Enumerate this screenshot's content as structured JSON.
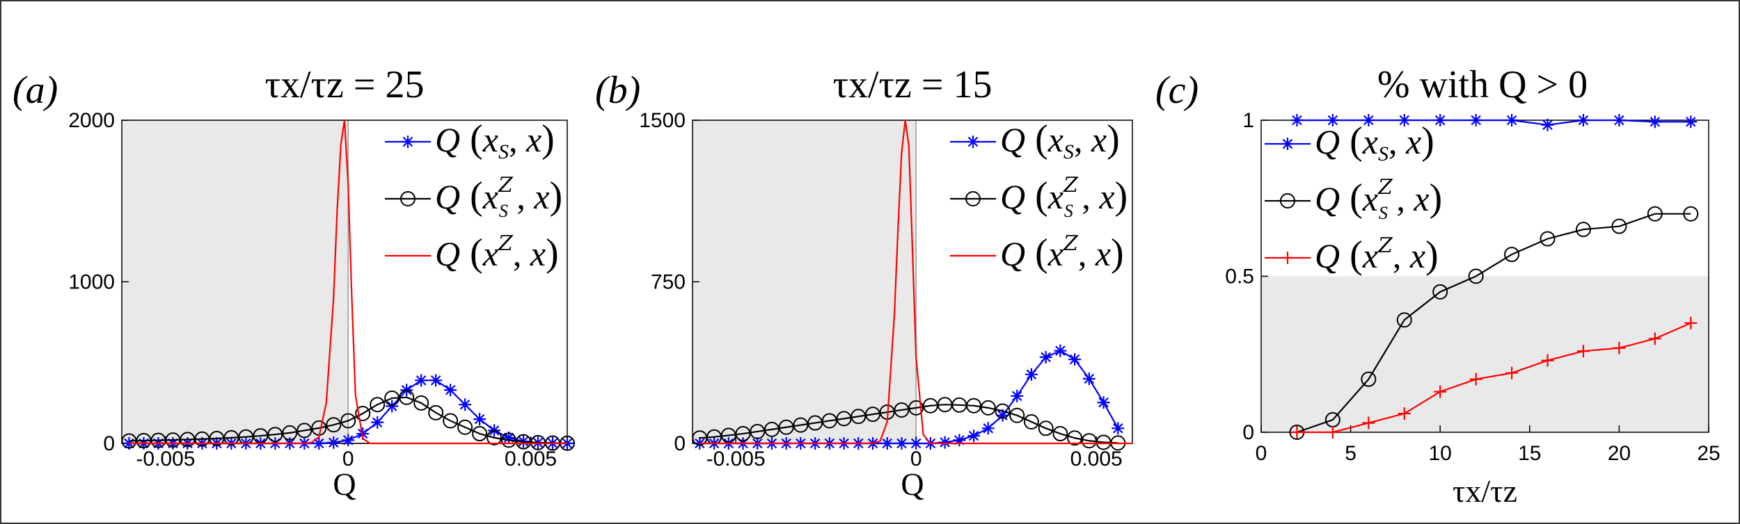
{
  "chart_data": [
    {
      "panel_label": "(a)",
      "type": "line",
      "title": "τx/τz = 25",
      "xlabel": "Q",
      "xlim": [
        -0.0062,
        0.006
      ],
      "ylim": [
        0,
        2000
      ],
      "yticks": [
        "0",
        "1000",
        "2000"
      ],
      "xticks": [
        "-0.005",
        "0",
        "0.005"
      ],
      "shaded_x": [
        -0.0062,
        0
      ],
      "legend_position": "top-right",
      "series": [
        {
          "name": "Q(xS, x)",
          "color": "#0000ff",
          "marker": "star",
          "x": [
            -0.006,
            -0.0056,
            -0.0052,
            -0.0048,
            -0.0044,
            -0.004,
            -0.0036,
            -0.0032,
            -0.0028,
            -0.0024,
            -0.002,
            -0.0016,
            -0.0012,
            -0.0008,
            -0.0004,
            0,
            0.0004,
            0.0008,
            0.0012,
            0.0016,
            0.002,
            0.0024,
            0.0028,
            0.0032,
            0.0036,
            0.004,
            0.0044,
            0.0048,
            0.0052,
            0.0056,
            0.006
          ],
          "y": [
            0,
            0,
            0,
            0,
            0,
            0,
            0,
            0,
            0,
            0,
            0,
            0,
            0,
            0,
            5,
            20,
            60,
            130,
            230,
            330,
            390,
            390,
            330,
            240,
            150,
            80,
            35,
            12,
            4,
            1,
            0
          ]
        },
        {
          "name": "Q(xS^Z, x)",
          "color": "#000000",
          "marker": "circle",
          "x": [
            -0.006,
            -0.0056,
            -0.0052,
            -0.0048,
            -0.0044,
            -0.004,
            -0.0036,
            -0.0032,
            -0.0028,
            -0.0024,
            -0.002,
            -0.0016,
            -0.0012,
            -0.0008,
            -0.0004,
            0,
            0.0004,
            0.0008,
            0.0012,
            0.0016,
            0.002,
            0.0024,
            0.0028,
            0.0032,
            0.0036,
            0.004,
            0.0044,
            0.0048,
            0.0052,
            0.0056,
            0.006
          ],
          "y": [
            15,
            17,
            19,
            21,
            24,
            27,
            30,
            35,
            40,
            47,
            55,
            65,
            80,
            95,
            115,
            140,
            185,
            240,
            280,
            285,
            250,
            190,
            140,
            100,
            60,
            35,
            20,
            10,
            5,
            2,
            1
          ]
        },
        {
          "name": "Q(x^Z, x)",
          "color": "#ff0000",
          "marker": "none",
          "x": [
            -0.006,
            -0.0012,
            -0.001,
            -0.0008,
            -0.0006,
            -0.0004,
            -0.0003,
            -0.0002,
            -0.0001,
            0,
            0.0001,
            0.0002,
            0.0004,
            0.0006,
            0.006
          ],
          "y": [
            0,
            0,
            5,
            40,
            250,
            900,
            1450,
            1850,
            2000,
            1600,
            900,
            300,
            30,
            0,
            0
          ]
        }
      ]
    },
    {
      "panel_label": "(b)",
      "type": "line",
      "title": "τx/τz = 15",
      "xlabel": "Q",
      "xlim": [
        -0.0062,
        0.006
      ],
      "ylim": [
        0,
        1500
      ],
      "yticks": [
        "0",
        "750",
        "1500"
      ],
      "xticks": [
        "-0.005",
        "0",
        "0.005"
      ],
      "shaded_x": [
        -0.0062,
        0
      ],
      "legend_position": "top-right",
      "series": [
        {
          "name": "Q(xS, x)",
          "color": "#0000ff",
          "marker": "star",
          "x": [
            -0.006,
            -0.0056,
            -0.0052,
            -0.0048,
            -0.0044,
            -0.004,
            -0.0036,
            -0.0032,
            -0.0028,
            -0.0024,
            -0.002,
            -0.0016,
            -0.0012,
            -0.0008,
            -0.0004,
            0,
            0.0004,
            0.0008,
            0.0012,
            0.0016,
            0.002,
            0.0024,
            0.0028,
            0.0032,
            0.0036,
            0.004,
            0.0044,
            0.0048,
            0.0052,
            0.0056
          ],
          "y": [
            0,
            0,
            0,
            0,
            0,
            0,
            0,
            0,
            0,
            0,
            0,
            0,
            0,
            0,
            0,
            0,
            0,
            5,
            15,
            35,
            70,
            130,
            220,
            320,
            400,
            430,
            390,
            300,
            190,
            70
          ]
        },
        {
          "name": "Q(xS^Z, x)",
          "color": "#000000",
          "marker": "circle",
          "x": [
            -0.006,
            -0.0056,
            -0.0052,
            -0.0048,
            -0.0044,
            -0.004,
            -0.0036,
            -0.0032,
            -0.0028,
            -0.0024,
            -0.002,
            -0.0016,
            -0.0012,
            -0.0008,
            -0.0004,
            0,
            0.0004,
            0.0008,
            0.0012,
            0.0016,
            0.002,
            0.0024,
            0.0028,
            0.0032,
            0.0036,
            0.004,
            0.0044,
            0.0048,
            0.0052,
            0.0056
          ],
          "y": [
            25,
            30,
            37,
            45,
            55,
            65,
            75,
            85,
            95,
            105,
            115,
            125,
            135,
            145,
            155,
            165,
            175,
            180,
            178,
            175,
            165,
            150,
            130,
            100,
            70,
            45,
            25,
            12,
            5,
            2
          ]
        },
        {
          "name": "Q(x^Z, x)",
          "color": "#ff0000",
          "marker": "none",
          "x": [
            -0.006,
            -0.0012,
            -0.001,
            -0.0008,
            -0.0006,
            -0.0005,
            -0.0004,
            -0.0003,
            -0.0002,
            -0.0001,
            0,
            0.0002,
            0.0004,
            0.006
          ],
          "y": [
            0,
            0,
            10,
            100,
            600,
            1000,
            1350,
            1500,
            1380,
            900,
            400,
            40,
            0,
            0
          ]
        }
      ]
    },
    {
      "panel_label": "(c)",
      "type": "line",
      "title": "% with Q > 0",
      "xlabel": "τx/τz",
      "xlim": [
        0,
        25
      ],
      "ylim": [
        0,
        1
      ],
      "yticks": [
        "0",
        "0.5",
        "1"
      ],
      "xticks": [
        "0",
        "5",
        "10",
        "15",
        "20",
        "25"
      ],
      "shaded_y": [
        0,
        0.5
      ],
      "legend_position": "top-left",
      "series": [
        {
          "name": "Q(xS, x)",
          "color": "#0000ff",
          "marker": "star",
          "x": [
            2,
            4,
            6,
            8,
            10,
            12,
            14,
            16,
            18,
            20,
            22,
            24
          ],
          "y": [
            1,
            1,
            1,
            1,
            1,
            1,
            1,
            0.985,
            1,
            1,
            0.995,
            0.995
          ]
        },
        {
          "name": "Q(xS^Z, x)",
          "color": "#000000",
          "marker": "circle",
          "x": [
            2,
            4,
            6,
            8,
            10,
            12,
            14,
            16,
            18,
            20,
            22,
            24
          ],
          "y": [
            0,
            0.04,
            0.17,
            0.36,
            0.45,
            0.5,
            0.57,
            0.62,
            0.65,
            0.66,
            0.7,
            0.7
          ]
        },
        {
          "name": "Q(x^Z, x)",
          "color": "#ff0000",
          "marker": "plus",
          "x": [
            2,
            4,
            6,
            8,
            10,
            12,
            14,
            16,
            18,
            20,
            22,
            24
          ],
          "y": [
            0,
            0,
            0.03,
            0.06,
            0.13,
            0.17,
            0.19,
            0.23,
            0.26,
            0.27,
            0.3,
            0.35
          ]
        }
      ]
    }
  ]
}
